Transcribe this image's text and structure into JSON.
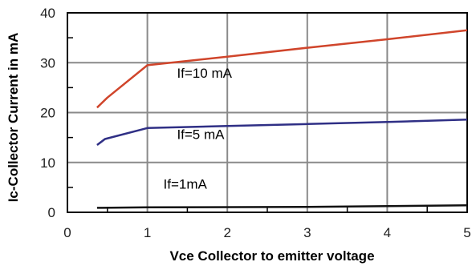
{
  "chart_data": {
    "type": "line",
    "xlabel": "Vce Collector to emitter voltage",
    "ylabel": "Ic-Collector Current in mA",
    "xlim": [
      0,
      5
    ],
    "ylim": [
      0,
      40
    ],
    "x_ticks": [
      "0",
      "1",
      "2",
      "3",
      "4",
      "5"
    ],
    "y_ticks": [
      "0",
      "10",
      "20",
      "30",
      "40"
    ],
    "grid": true,
    "series": [
      {
        "name": "If=10 mA",
        "color": "#d0452b",
        "points": [
          [
            0.37,
            21
          ],
          [
            0.5,
            23
          ],
          [
            1.0,
            29.5
          ],
          [
            2.0,
            31.2
          ],
          [
            3.0,
            33
          ],
          [
            4.0,
            34.7
          ],
          [
            5.0,
            36.5
          ]
        ]
      },
      {
        "name": "If=5 mA",
        "color": "#2f2f85",
        "points": [
          [
            0.37,
            13.5
          ],
          [
            0.47,
            14.7
          ],
          [
            1.0,
            16.9
          ],
          [
            2.0,
            17.3
          ],
          [
            3.0,
            17.7
          ],
          [
            4.0,
            18.1
          ],
          [
            5.0,
            18.6
          ]
        ]
      },
      {
        "name": "If=1mA",
        "color": "#111111",
        "points": [
          [
            0.37,
            0.9
          ],
          [
            1.0,
            1.0
          ],
          [
            3.0,
            1.1
          ],
          [
            5.0,
            1.4
          ]
        ]
      }
    ]
  }
}
